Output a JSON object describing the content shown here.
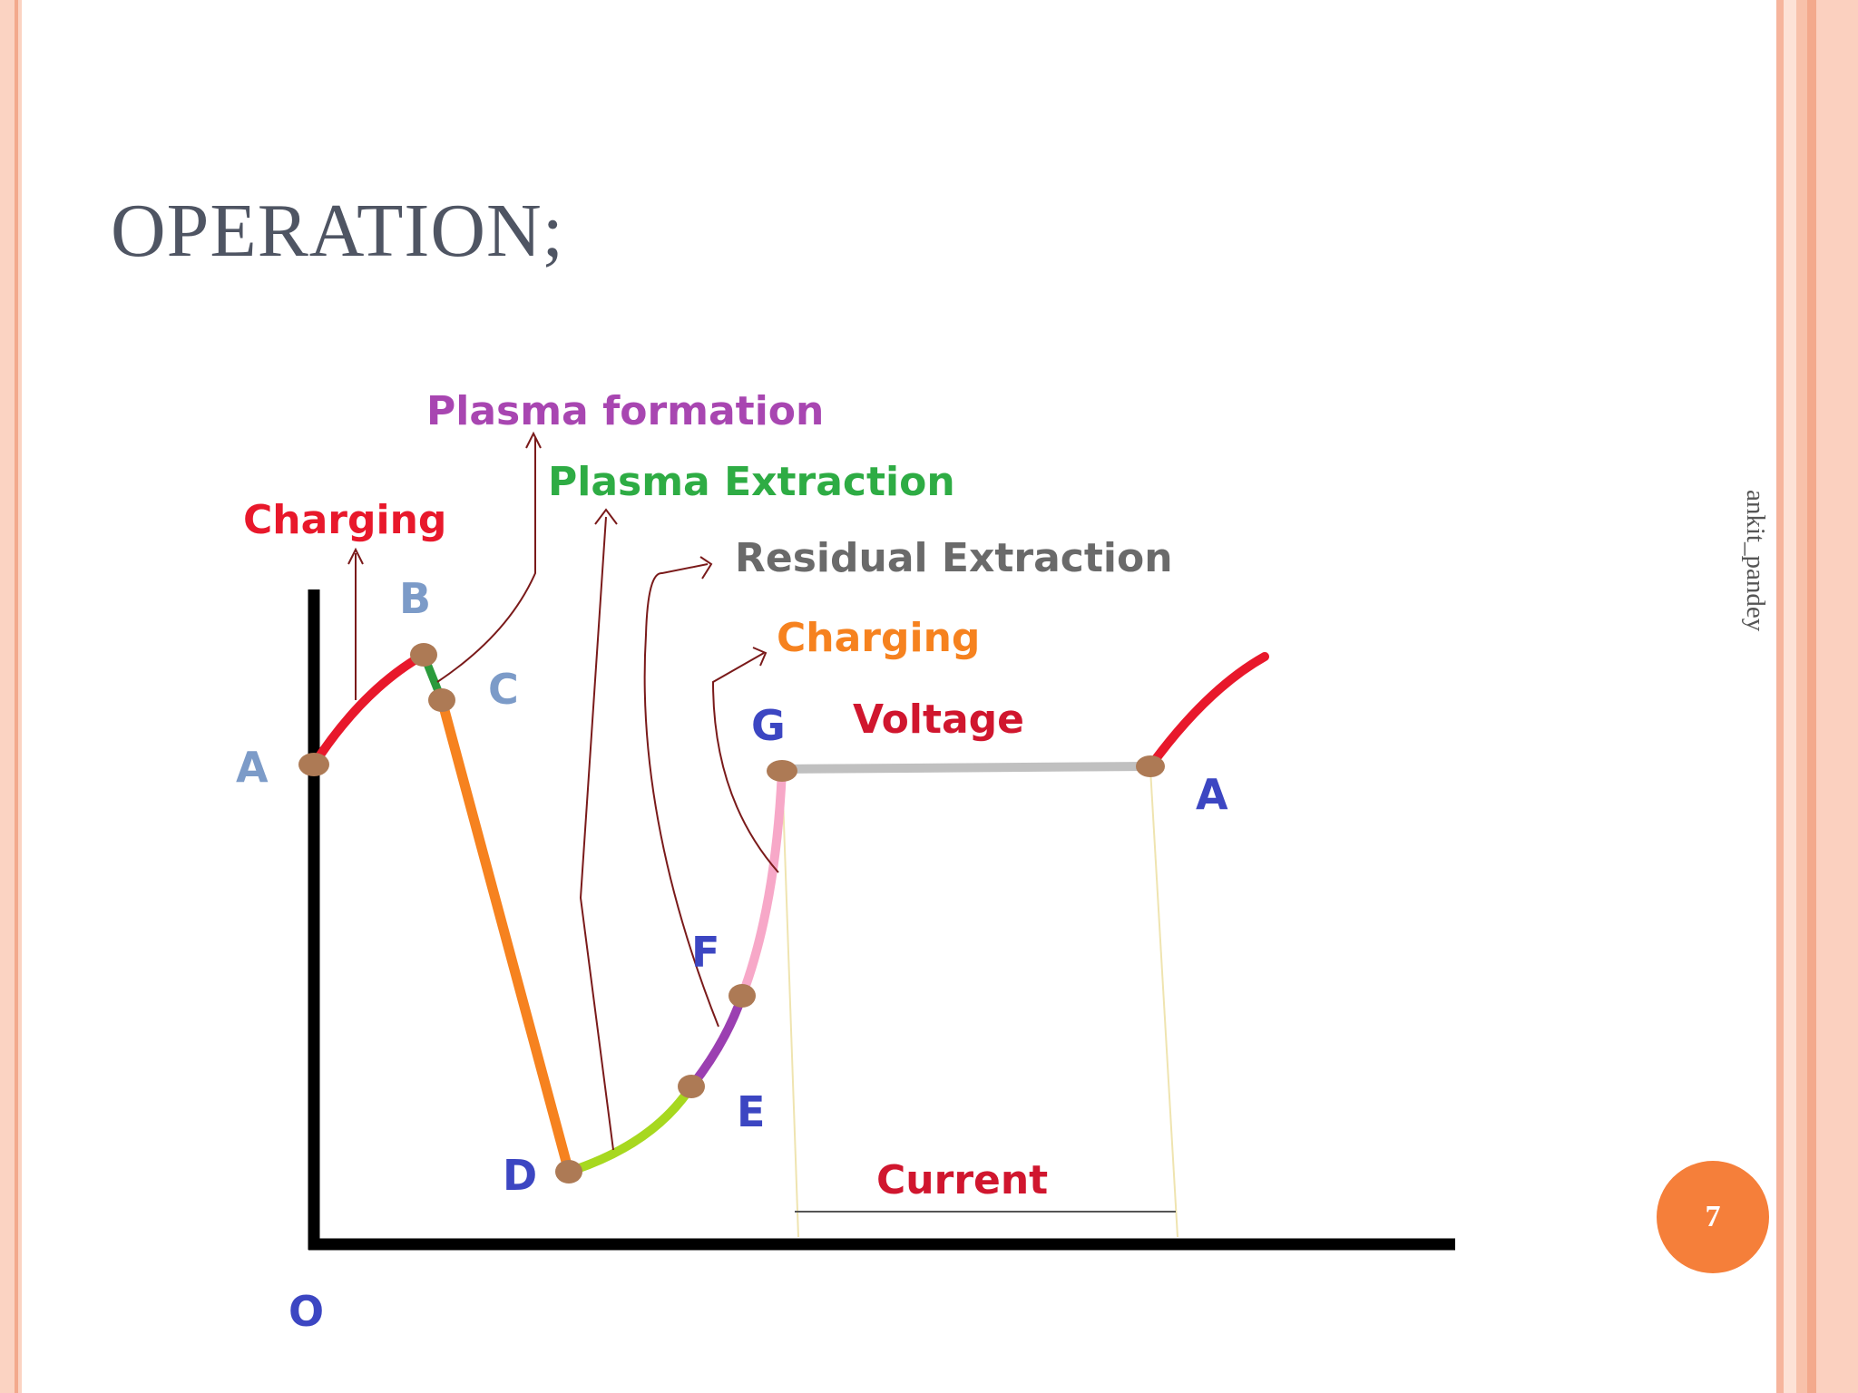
{
  "slide": {
    "title": "OPERATION;",
    "watermark": "ankit_pandey",
    "page_number": "7"
  },
  "diagram": {
    "annotations": {
      "plasma_formation": "Plasma formation",
      "plasma_extraction": "Plasma Extraction",
      "charging_1": "Charging",
      "residual_extraction": "Residual Extraction",
      "charging_2": "Charging",
      "voltage": "Voltage",
      "current": "Current"
    },
    "points": {
      "A": "A",
      "B": "B",
      "C": "C",
      "D": "D",
      "E": "E",
      "F": "F",
      "G": "G",
      "A2": "A",
      "O": "O"
    },
    "colors": {
      "charging": "#e8182b",
      "plasma_formation": "#2b9a3c",
      "fall": "#f6821f",
      "plasma_extraction": "#a7d81f",
      "residual": "#9b3fb1",
      "charging_2": "#f7a8c8",
      "voltage_line": "#c0c0c0",
      "point_labels": "#3c46c2",
      "point_labels_light": "#7c9bc8",
      "dots": "#ad7a55"
    }
  }
}
